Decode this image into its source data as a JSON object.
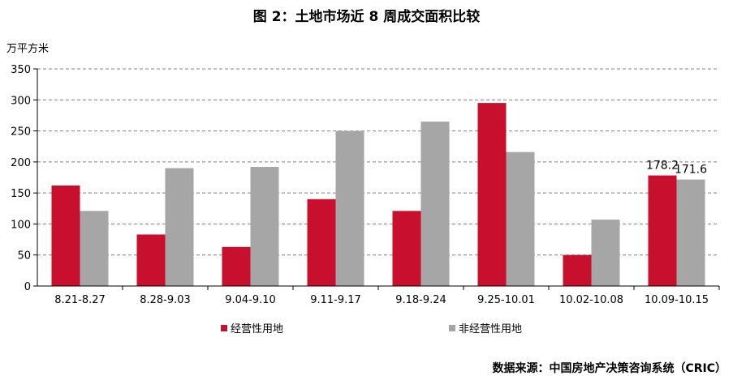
{
  "chart_data": {
    "type": "bar",
    "title": "图 2：土地市场近 8 周成交面积比较",
    "ylabel": "万平方米",
    "xlabel": "",
    "ylim": [
      0,
      350
    ],
    "yticks": [
      0,
      50,
      100,
      150,
      200,
      250,
      300,
      350
    ],
    "grid": true,
    "legend": "bottom-left",
    "categories": [
      "8.21-8.27",
      "8.28-9.03",
      "9.04-9.10",
      "9.11-9.17",
      "9.18-9.24",
      "9.25-10.01",
      "10.02-10.08",
      "10.09-10.15"
    ],
    "series": [
      {
        "name": "经营性用地",
        "color": "#c8102e",
        "values": [
          162,
          83,
          63,
          140,
          121,
          295,
          50,
          178.2
        ]
      },
      {
        "name": "非经营性用地",
        "color": "#a6a6a6",
        "values": [
          121,
          190,
          192,
          250,
          265,
          216,
          107,
          171.6
        ]
      }
    ],
    "data_labels": [
      {
        "category_index": 7,
        "series_index": 0,
        "text": "178.2"
      },
      {
        "category_index": 7,
        "series_index": 1,
        "text": "171.6"
      }
    ],
    "source": "数据来源：中国房地产决策咨询系统（CRIC）"
  }
}
